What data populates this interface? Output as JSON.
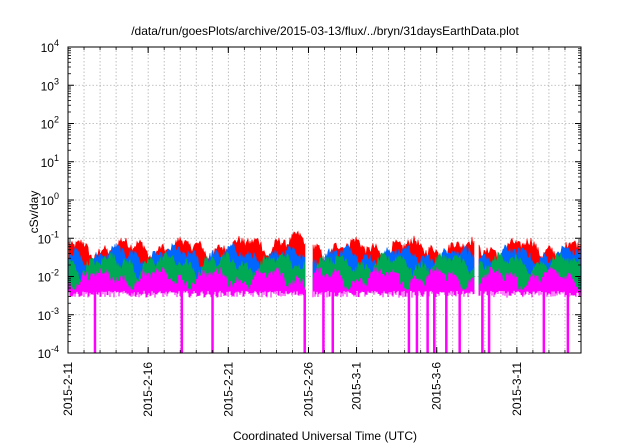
{
  "chart_data": {
    "type": "area",
    "title": "/data/run/goesPlots/archive/2015-03-13/flux/../bryn/31daysEarthData.plot",
    "xlabel": "Coordinated Universal Time (UTC)",
    "ylabel": "cSv/day",
    "y_scale": "log",
    "ylim": [
      0.0001,
      10000
    ],
    "y_ticks": [
      {
        "value": 0.0001,
        "base": "10",
        "exp": "-4"
      },
      {
        "value": 0.001,
        "base": "10",
        "exp": "-3"
      },
      {
        "value": 0.01,
        "base": "10",
        "exp": "-2"
      },
      {
        "value": 0.1,
        "base": "10",
        "exp": "-1"
      },
      {
        "value": 1,
        "base": "10",
        "exp": "0"
      },
      {
        "value": 10,
        "base": "10",
        "exp": "1"
      },
      {
        "value": 100,
        "base": "10",
        "exp": "2"
      },
      {
        "value": 1000,
        "base": "10",
        "exp": "3"
      },
      {
        "value": 10000,
        "base": "10",
        "exp": "4"
      }
    ],
    "xlim": [
      "2015-02-11",
      "2015-03-15"
    ],
    "x_ticks": [
      "2015-2-11",
      "2015-2-16",
      "2015-2-21",
      "2015-2-26",
      "2015-3-1",
      "2015-3-6",
      "2015-3-11"
    ],
    "x_tick_dates": [
      "2015-02-11",
      "2015-02-16",
      "2015-02-21",
      "2015-02-26",
      "2015-03-01",
      "2015-03-06",
      "2015-03-11"
    ],
    "grid": true,
    "series_colors": [
      "#ff0000",
      "#0066ff",
      "#00aa55",
      "#ff00ff"
    ],
    "series": [
      {
        "color": "#ff0000",
        "level": 0.055
      },
      {
        "color": "#0066ff",
        "level": 0.035
      },
      {
        "color": "#00aa55",
        "level": 0.022
      },
      {
        "color": "#ff00ff",
        "level": 0.009
      }
    ],
    "gaps": [
      {
        "start": "2015-02-25T20:00",
        "end": "2015-02-26T06:00"
      },
      {
        "start": "2015-03-08T08:00",
        "end": "2015-03-08T14:00"
      }
    ],
    "dropouts": [
      "2015-02-12T16:00",
      "2015-02-18T02:00",
      "2015-02-20T00:00",
      "2015-02-25T18:00",
      "2015-02-26T22:00",
      "2015-02-27T12:00",
      "2015-03-04T06:00",
      "2015-03-04T18:00",
      "2015-03-05T10:00",
      "2015-03-05T20:00",
      "2015-03-06T14:00",
      "2015-03-07T10:00",
      "2015-03-08T20:00",
      "2015-03-09T06:00",
      "2015-03-12T16:00",
      "2015-03-14T04:00"
    ]
  }
}
